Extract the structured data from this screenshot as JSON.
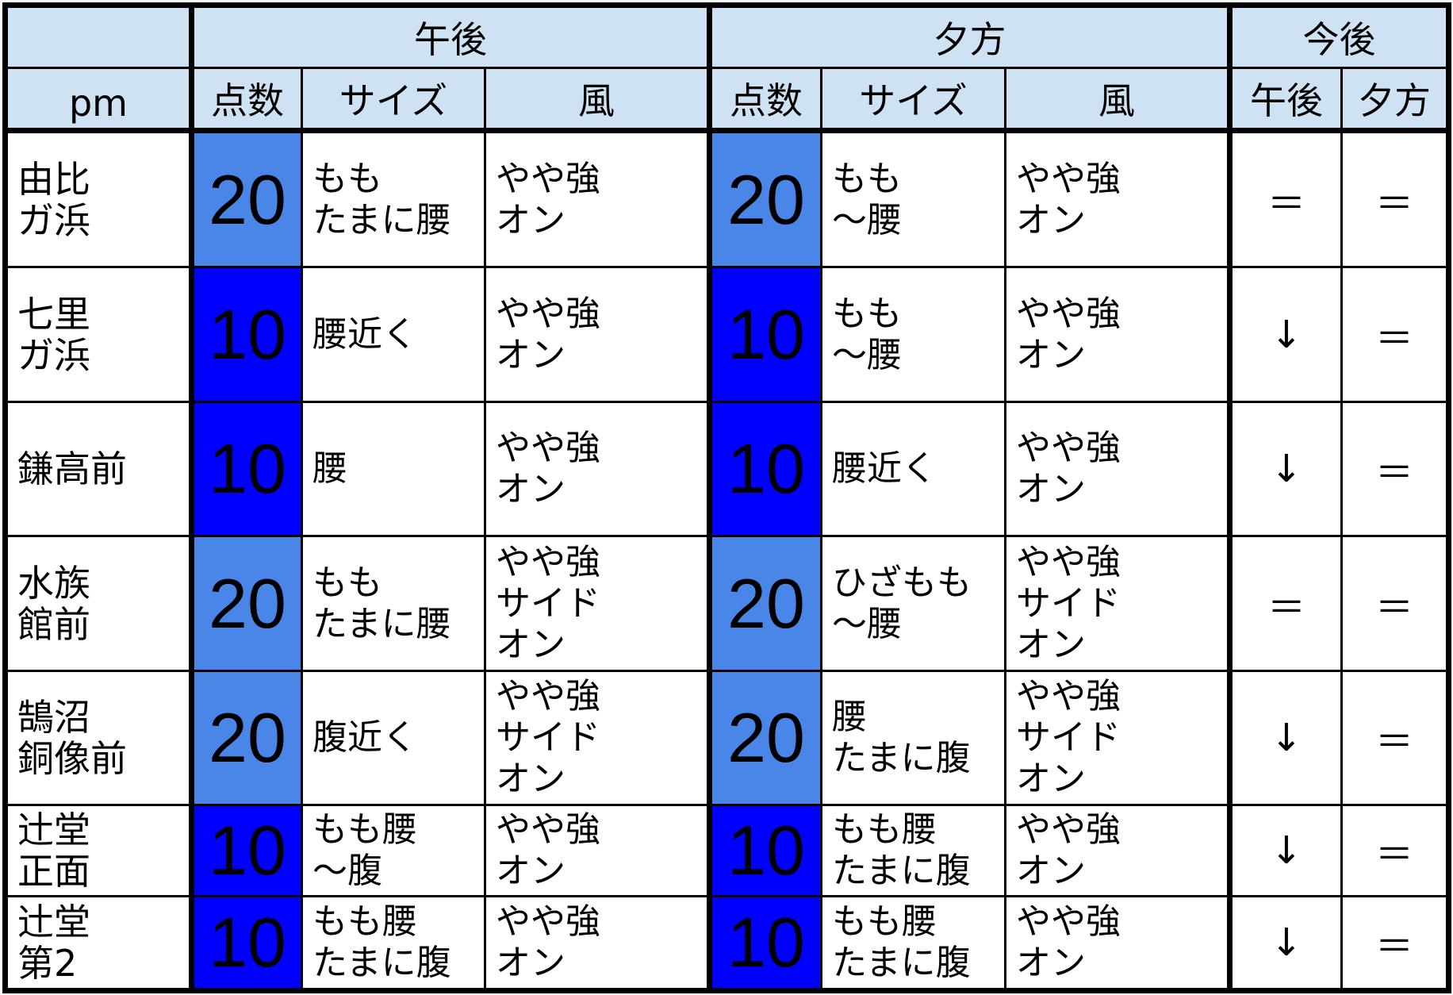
{
  "header": {
    "corner_label": "pm",
    "groups": [
      "午後",
      "夕方",
      "今後"
    ],
    "sub_columns": {
      "afternoon": [
        "点数",
        "サイズ",
        "風"
      ],
      "evening": [
        "点数",
        "サイズ",
        "風"
      ],
      "outlook": [
        "午後",
        "夕方"
      ]
    }
  },
  "colors": {
    "header_bg": "#cfe2f3",
    "score_20": "#4a86e8",
    "score_10": "#0000ff"
  },
  "rows": [
    {
      "spot": "由比\nガ浜",
      "pm_score": "20",
      "pm_size": "もも\nたまに腰",
      "pm_wind": "やや強\nオン",
      "ev_score": "20",
      "ev_size": "もも\n～腰",
      "ev_wind": "やや強\nオン",
      "out_pm": "＝",
      "out_ev": "＝"
    },
    {
      "spot": "七里\nガ浜",
      "pm_score": "10",
      "pm_size": "腰近く",
      "pm_wind": "やや強\nオン",
      "ev_score": "10",
      "ev_size": "もも\n～腰",
      "ev_wind": "やや強\nオン",
      "out_pm": "↓",
      "out_ev": "＝"
    },
    {
      "spot": "鎌高前",
      "pm_score": "10",
      "pm_size": "腰",
      "pm_wind": "やや強\nオン",
      "ev_score": "10",
      "ev_size": "腰近く",
      "ev_wind": "やや強\nオン",
      "out_pm": "↓",
      "out_ev": "＝"
    },
    {
      "spot": "水族\n館前",
      "pm_score": "20",
      "pm_size": "もも\nたまに腰",
      "pm_wind": "やや強\nサイド\nオン",
      "ev_score": "20",
      "ev_size": "ひざもも\n～腰",
      "ev_wind": "やや強\nサイド\nオン",
      "out_pm": "＝",
      "out_ev": "＝"
    },
    {
      "spot": "鵠沼\n銅像前",
      "pm_score": "20",
      "pm_size": "腹近く",
      "pm_wind": "やや強\nサイド\nオン",
      "ev_score": "20",
      "ev_size": "腰\nたまに腹",
      "ev_wind": "やや強\nサイド\nオン",
      "out_pm": "↓",
      "out_ev": "＝"
    },
    {
      "spot": "辻堂\n正面",
      "pm_score": "10",
      "pm_size": "もも腰\n～腹",
      "pm_wind": "やや強\nオン",
      "ev_score": "10",
      "ev_size": "もも腰\nたまに腹",
      "ev_wind": "やや強\nオン",
      "out_pm": "↓",
      "out_ev": "＝"
    },
    {
      "spot": "辻堂\n第2",
      "pm_score": "10",
      "pm_size": "もも腰\nたまに腹",
      "pm_wind": "やや強\nオン",
      "ev_score": "10",
      "ev_size": "もも腰\nたまに腹",
      "ev_wind": "やや強\nオン",
      "out_pm": "↓",
      "out_ev": "＝"
    }
  ]
}
